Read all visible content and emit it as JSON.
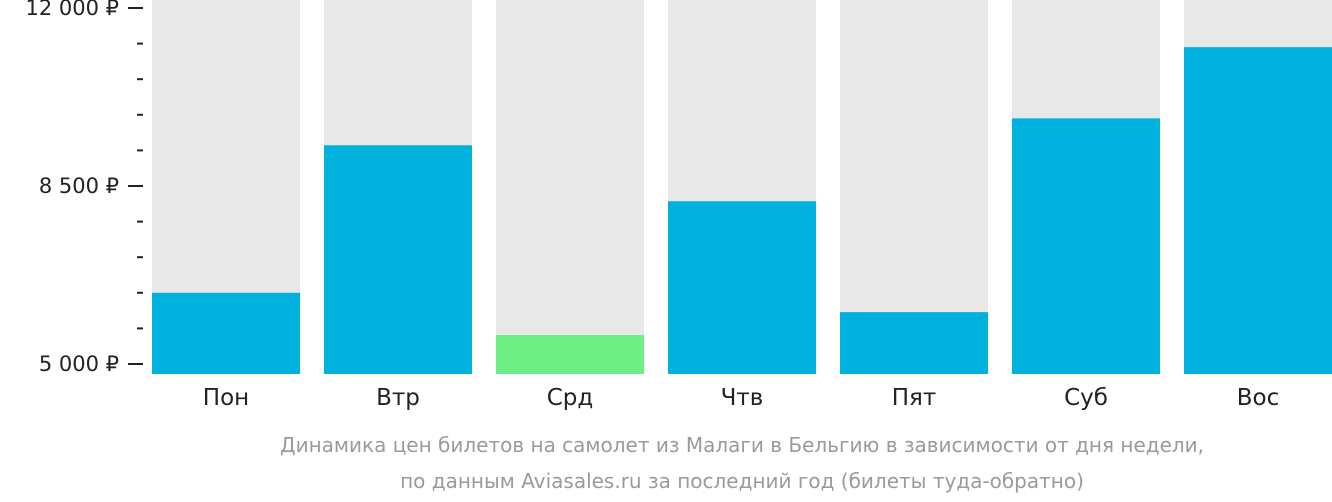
{
  "chart_data": {
    "type": "bar",
    "categories": [
      "Пон",
      "Втр",
      "Срд",
      "Чтв",
      "Пят",
      "Суб",
      "Вос"
    ],
    "values": [
      6400,
      9300,
      5570,
      8200,
      6020,
      9830,
      11230
    ],
    "ylim": [
      5000,
      12000
    ],
    "yticks": [
      {
        "value": 5000,
        "label": "5 000 ₽"
      },
      {
        "value": 8500,
        "label": "8 500 ₽"
      },
      {
        "value": 12000,
        "label": "12 000 ₽"
      }
    ],
    "minor_tick_step": 700,
    "highlight_index": 2,
    "colors": {
      "bar": "#00b0dd",
      "highlight": "#6cf086",
      "background_bar": "#e8e8e8",
      "axis": "#222222"
    },
    "caption": [
      "Динамика цен билетов на самолет из Малаги в Бельгию в зависимости от дня недели,",
      "по данным Aviasales.ru за последний год (билеты туда-обратно)"
    ]
  }
}
